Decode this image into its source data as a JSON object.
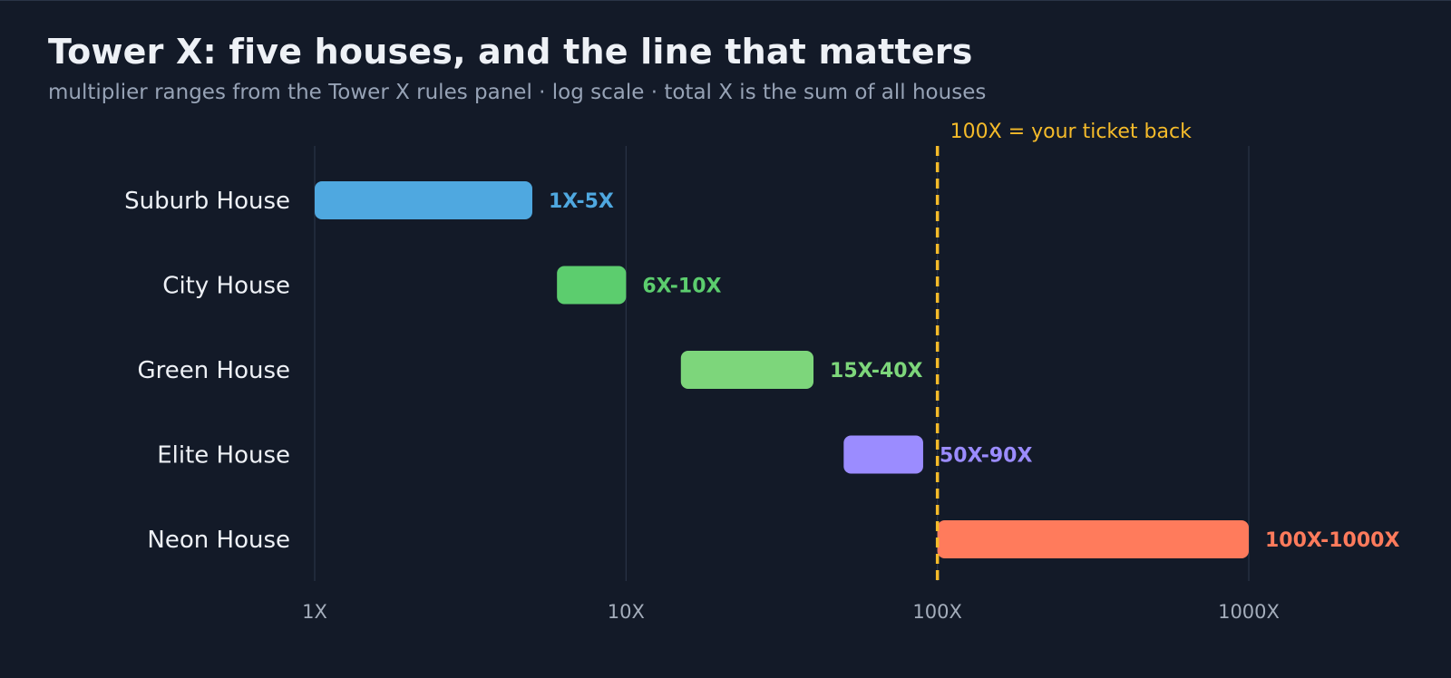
{
  "chart_data": {
    "type": "bar",
    "orientation": "horizontal",
    "chart_kind": "floating range bars",
    "title": "Tower X: five houses, and the line that matters",
    "subtitle": "multiplier ranges from the Tower X rules panel · log scale · total X is the sum of all houses",
    "x_scale": "log",
    "xlim": [
      1,
      1000
    ],
    "x_ticks": [
      {
        "value": 1,
        "label": "1X"
      },
      {
        "value": 10,
        "label": "10X"
      },
      {
        "value": 100,
        "label": "100X"
      },
      {
        "value": 1000,
        "label": "1000X"
      }
    ],
    "grid": "vertical lines at ticks",
    "categories": [
      "Suburb House",
      "City House",
      "Green House",
      "Elite House",
      "Neon House"
    ],
    "series": [
      {
        "ranges": [
          {
            "category": "Suburb House",
            "low": 1,
            "high": 5,
            "label": "1X-5X",
            "color": "#4fa8e0"
          },
          {
            "category": "City House",
            "low": 6,
            "high": 10,
            "label": "6X-10X",
            "color": "#5ccd6e"
          },
          {
            "category": "Green House",
            "low": 15,
            "high": 40,
            "label": "15X-40X",
            "color": "#7dd67b"
          },
          {
            "category": "Elite House",
            "low": 50,
            "high": 90,
            "label": "50X-90X",
            "color": "#9b8cff"
          },
          {
            "category": "Neon House",
            "low": 100,
            "high": 1000,
            "label": "100X-1000X",
            "color": "#ff7b5c"
          }
        ]
      }
    ],
    "reference_line": {
      "value": 100,
      "label": "100X = your ticket back",
      "style": "dashed",
      "color": "#f5bb2a"
    },
    "colors": {
      "background": "#131a28",
      "grid": "#2a3446",
      "axis_text": "#a4adbb",
      "category_text": "#eef1f6"
    }
  }
}
